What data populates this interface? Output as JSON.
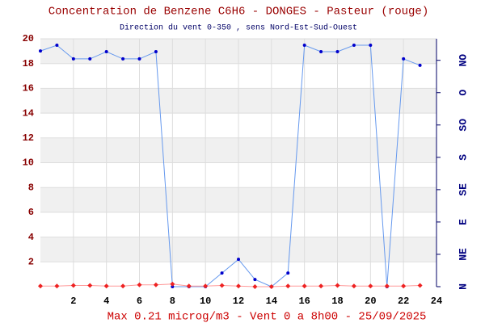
{
  "chart_data": {
    "type": "line",
    "title": "Concentration de Benzene C6H6  -   DONGES - Pasteur (rouge)",
    "subtitle": "Direction du vent 0-350 , sens Nord-Est-Sud-Ouest",
    "footer": "Max 0.21 microg/m3 - Vent 0  a 8h00 - 25/09/2025",
    "x": [
      0,
      1,
      2,
      3,
      4,
      5,
      6,
      7,
      8,
      9,
      10,
      11,
      12,
      13,
      14,
      15,
      16,
      17,
      18,
      19,
      20,
      21,
      22,
      23
    ],
    "xlim": [
      0,
      24
    ],
    "xticks": [
      2,
      4,
      6,
      8,
      10,
      12,
      14,
      16,
      18,
      20,
      22,
      24
    ],
    "ylim": [
      0,
      20
    ],
    "yticks": [
      2,
      4,
      6,
      8,
      10,
      12,
      14,
      16,
      18,
      20
    ],
    "y2lim": [
      0,
      345
    ],
    "y2ticks": [
      {
        "value": 0,
        "label": "N"
      },
      {
        "value": 45,
        "label": "NE"
      },
      {
        "value": 90,
        "label": "E"
      },
      {
        "value": 135,
        "label": "SE"
      },
      {
        "value": 180,
        "label": "S"
      },
      {
        "value": 225,
        "label": "SO"
      },
      {
        "value": 270,
        "label": "O"
      },
      {
        "value": 315,
        "label": "NO"
      }
    ],
    "grid": true,
    "series": [
      {
        "name": "Benzene",
        "color": "#ee2222",
        "values": [
          0.05,
          0.05,
          0.1,
          0.1,
          0.05,
          0.05,
          0.15,
          0.15,
          0.21,
          0.05,
          0.05,
          0.1,
          0.05,
          0,
          0,
          0.05,
          0.05,
          0.05,
          0.1,
          0.05,
          0.05,
          0.05,
          0.05,
          0.1
        ]
      },
      {
        "name": "Vent",
        "color": "#6699ee",
        "axis": "y2",
        "values": [
          328,
          336,
          317,
          317,
          327,
          317,
          317,
          327,
          0,
          0,
          0,
          19,
          38,
          10,
          0,
          19,
          336,
          327,
          327,
          336,
          336,
          0,
          317,
          308
        ]
      }
    ]
  }
}
